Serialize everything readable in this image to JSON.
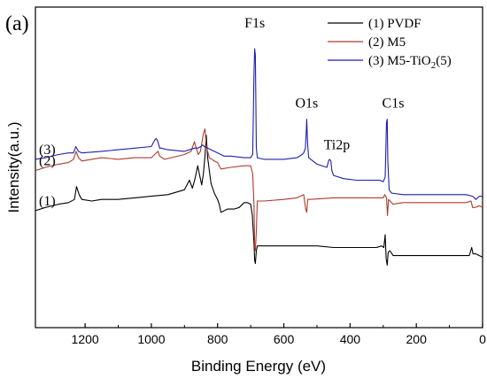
{
  "chart_data": {
    "type": "line",
    "panel_label": "(a)",
    "xlabel": "Binding Energy (eV)",
    "ylabel": "Intensity(a.u.)",
    "xlim": [
      1350,
      0
    ],
    "x_reversed": true,
    "y_ticks_shown": false,
    "grid": false,
    "legend_position": "top-right",
    "x_ticks": [
      1200,
      1000,
      800,
      600,
      400,
      200,
      0
    ],
    "x_tick_labels": [
      "1200",
      "1000",
      "800",
      "600",
      "400",
      "200",
      "0"
    ],
    "series": [
      {
        "name": "(1) PVDF",
        "label": "(1)",
        "color": "#000000",
        "points": [
          [
            1350,
            63.5
          ],
          [
            1320,
            62.5
          ],
          [
            1280,
            61.5
          ],
          [
            1250,
            61
          ],
          [
            1232,
            60
          ],
          [
            1226,
            56
          ],
          [
            1218,
            58.5
          ],
          [
            1210,
            60
          ],
          [
            1180,
            60.5
          ],
          [
            1150,
            60
          ],
          [
            1100,
            60
          ],
          [
            1050,
            59.5
          ],
          [
            1000,
            59
          ],
          [
            950,
            58.5
          ],
          [
            900,
            57
          ],
          [
            885,
            54
          ],
          [
            876,
            56.5
          ],
          [
            868,
            53.5
          ],
          [
            860,
            49.5
          ],
          [
            854,
            52.5
          ],
          [
            848,
            55.5
          ],
          [
            843,
            52
          ],
          [
            838,
            46.5
          ],
          [
            834,
            40
          ],
          [
            830,
            47
          ],
          [
            825,
            51
          ],
          [
            820,
            55
          ],
          [
            810,
            58
          ],
          [
            800,
            60
          ],
          [
            795,
            61.5
          ],
          [
            790,
            64
          ],
          [
            770,
            63
          ],
          [
            750,
            63
          ],
          [
            735,
            62.5
          ],
          [
            720,
            61
          ],
          [
            710,
            61
          ],
          [
            700,
            61.5
          ],
          [
            695,
            65
          ],
          [
            690,
            74
          ],
          [
            688,
            79
          ],
          [
            686,
            80
          ],
          [
            683,
            76
          ],
          [
            680,
            74.5
          ],
          [
            670,
            74.5
          ],
          [
            600,
            74.5
          ],
          [
            550,
            74.5
          ],
          [
            500,
            74.5
          ],
          [
            450,
            75
          ],
          [
            400,
            75
          ],
          [
            320,
            75
          ],
          [
            305,
            74.5
          ],
          [
            298,
            75
          ],
          [
            294,
            71
          ],
          [
            291,
            78.5
          ],
          [
            288,
            80.5
          ],
          [
            285,
            76.5
          ],
          [
            280,
            76
          ],
          [
            270,
            77.5
          ],
          [
            240,
            77.5
          ],
          [
            200,
            77.5
          ],
          [
            160,
            77.5
          ],
          [
            120,
            77.5
          ],
          [
            60,
            77.5
          ],
          [
            40,
            77.5
          ],
          [
            33,
            75
          ],
          [
            29,
            77
          ],
          [
            20,
            77
          ],
          [
            10,
            77.5
          ],
          [
            0,
            78
          ]
        ]
      },
      {
        "name": "(2) M5",
        "label": "(2)",
        "color": "#b03a2e",
        "points": [
          [
            1350,
            51
          ],
          [
            1320,
            50
          ],
          [
            1280,
            49
          ],
          [
            1250,
            48.5
          ],
          [
            1235,
            47.5
          ],
          [
            1227,
            45
          ],
          [
            1220,
            47
          ],
          [
            1210,
            48
          ],
          [
            1150,
            47
          ],
          [
            1100,
            47.5
          ],
          [
            1050,
            47
          ],
          [
            1000,
            47
          ],
          [
            980,
            45
          ],
          [
            975,
            46.5
          ],
          [
            960,
            47.5
          ],
          [
            900,
            46
          ],
          [
            880,
            45
          ],
          [
            870,
            42
          ],
          [
            866,
            43.5
          ],
          [
            858,
            46
          ],
          [
            852,
            45
          ],
          [
            847,
            42
          ],
          [
            843,
            39.5
          ],
          [
            838,
            38
          ],
          [
            834,
            43
          ],
          [
            830,
            45
          ],
          [
            825,
            47
          ],
          [
            810,
            48
          ],
          [
            800,
            48.5
          ],
          [
            790,
            50.5
          ],
          [
            760,
            50
          ],
          [
            720,
            49.5
          ],
          [
            700,
            49.5
          ],
          [
            694,
            52
          ],
          [
            690,
            62
          ],
          [
            688,
            75
          ],
          [
            686,
            76
          ],
          [
            683,
            70
          ],
          [
            680,
            60.5
          ],
          [
            660,
            60.5
          ],
          [
            600,
            60
          ],
          [
            560,
            59.5
          ],
          [
            540,
            58.5
          ],
          [
            534,
            63
          ],
          [
            531,
            64
          ],
          [
            528,
            60
          ],
          [
            520,
            60
          ],
          [
            450,
            59.5
          ],
          [
            400,
            59.5
          ],
          [
            320,
            59.5
          ],
          [
            300,
            59.5
          ],
          [
            295,
            58.5
          ],
          [
            290,
            59.5
          ],
          [
            287,
            65
          ],
          [
            284,
            60
          ],
          [
            270,
            61.5
          ],
          [
            240,
            61
          ],
          [
            200,
            61
          ],
          [
            150,
            61
          ],
          [
            100,
            61
          ],
          [
            50,
            61
          ],
          [
            35,
            60.5
          ],
          [
            30,
            62.5
          ],
          [
            22,
            62.5
          ],
          [
            10,
            62
          ],
          [
            0,
            62.5
          ]
        ]
      },
      {
        "name": "(3) M5-TiO2(5)",
        "legend_main": "(3) M5-TiO",
        "legend_sub": "2",
        "legend_tail": "(5)",
        "label": "(3)",
        "color": "#1f1fa8",
        "points": [
          [
            1350,
            47.5
          ],
          [
            1320,
            47
          ],
          [
            1280,
            46
          ],
          [
            1250,
            45.5
          ],
          [
            1235,
            45.5
          ],
          [
            1228,
            43.5
          ],
          [
            1220,
            45
          ],
          [
            1210,
            45.5
          ],
          [
            1150,
            45
          ],
          [
            1100,
            44.5
          ],
          [
            1050,
            44
          ],
          [
            1000,
            43.5
          ],
          [
            990,
            41.5
          ],
          [
            985,
            41
          ],
          [
            980,
            42
          ],
          [
            975,
            44
          ],
          [
            970,
            44
          ],
          [
            950,
            44.5
          ],
          [
            900,
            45
          ],
          [
            870,
            44
          ],
          [
            860,
            44
          ],
          [
            850,
            43.5
          ],
          [
            845,
            43
          ],
          [
            840,
            43.5
          ],
          [
            830,
            44
          ],
          [
            810,
            45
          ],
          [
            790,
            46
          ],
          [
            780,
            46.5
          ],
          [
            760,
            46.5
          ],
          [
            720,
            47
          ],
          [
            700,
            47
          ],
          [
            694,
            46
          ],
          [
            690,
            20
          ],
          [
            688,
            13
          ],
          [
            686,
            15
          ],
          [
            683,
            44
          ],
          [
            680,
            47
          ],
          [
            660,
            47.5
          ],
          [
            600,
            47.5
          ],
          [
            560,
            47
          ],
          [
            545,
            46
          ],
          [
            540,
            45.5
          ],
          [
            535,
            44
          ],
          [
            532,
            38
          ],
          [
            531,
            35
          ],
          [
            528,
            43
          ],
          [
            525,
            47
          ],
          [
            500,
            49
          ],
          [
            470,
            50
          ],
          [
            465,
            48
          ],
          [
            462,
            47.5
          ],
          [
            458,
            48
          ],
          [
            455,
            51
          ],
          [
            450,
            52.5
          ],
          [
            420,
            53.5
          ],
          [
            380,
            54
          ],
          [
            340,
            54
          ],
          [
            310,
            54
          ],
          [
            300,
            54.5
          ],
          [
            294,
            53
          ],
          [
            290,
            36
          ],
          [
            288,
            35
          ],
          [
            286,
            48
          ],
          [
            282,
            57
          ],
          [
            275,
            58
          ],
          [
            240,
            58.5
          ],
          [
            200,
            58.5
          ],
          [
            150,
            58.5
          ],
          [
            100,
            58.5
          ],
          [
            50,
            58.5
          ],
          [
            30,
            59
          ],
          [
            20,
            60
          ],
          [
            10,
            59
          ],
          [
            0,
            59
          ]
        ]
      }
    ],
    "annotations": [
      {
        "text": "F1s",
        "x": 688,
        "y": 3
      },
      {
        "text": "O1s",
        "x": 531,
        "y": 28
      },
      {
        "text": "Ti2p",
        "x": 440,
        "y": 41
      },
      {
        "text": "C1s",
        "x": 270,
        "y": 28
      }
    ]
  }
}
